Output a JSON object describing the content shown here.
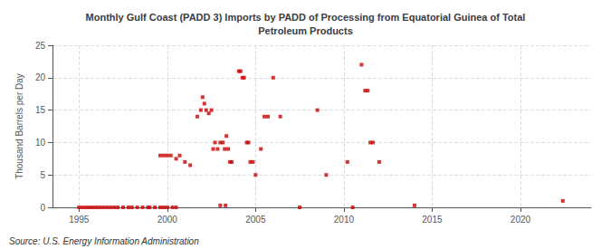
{
  "chart_data": {
    "type": "scatter",
    "title": "Monthly Gulf Coast (PADD 3) Imports by PADD of Processing from Equatorial Guinea of Total\nPetroleum Products",
    "ylabel": "Thousand Barrels per Day",
    "source": "Source: U.S. Energy Information Administration",
    "color": "#cc0000",
    "marker": "square",
    "grid": true,
    "xlim": [
      1993.5,
      2024
    ],
    "ylim": [
      0,
      25
    ],
    "xticks": [
      1995,
      2000,
      2005,
      2010,
      2015,
      2020
    ],
    "yticks": [
      0,
      5,
      10,
      15,
      20,
      25
    ],
    "x": [
      1995.0,
      1995.2,
      1995.4,
      1995.6,
      1995.8,
      1996.0,
      1996.2,
      1996.4,
      1996.6,
      1996.8,
      1997.0,
      1997.2,
      1997.5,
      1997.8,
      1998.0,
      1998.3,
      1998.6,
      1998.9,
      1999.0,
      1999.3,
      1999.6,
      1999.8,
      2000.0,
      2000.3,
      2000.5,
      1999.6,
      1999.8,
      2000.0,
      2000.2,
      2000.5,
      2000.7,
      2001.0,
      2001.3,
      2001.7,
      2001.9,
      2002.0,
      2002.1,
      2002.2,
      2002.35,
      2002.5,
      2002.6,
      2002.7,
      2002.85,
      2003.0,
      2003.15,
      2003.25,
      2003.35,
      2003.45,
      2003.55,
      2003.0,
      2003.3,
      2003.65,
      2004.05,
      2004.15,
      2004.25,
      2004.35,
      2004.5,
      2004.6,
      2004.7,
      2004.85,
      2005.0,
      2005.3,
      2005.5,
      2005.7,
      2006.0,
      2006.4,
      2007.5,
      2008.5,
      2009.0,
      2010.2,
      2010.5,
      2011.0,
      2011.2,
      2011.35,
      2011.5,
      2011.65,
      2012.0,
      2014.0,
      2022.4
    ],
    "values": [
      0,
      0,
      0,
      0,
      0,
      0,
      0,
      0,
      0,
      0,
      0,
      0,
      0,
      0,
      0,
      0,
      0,
      0,
      0,
      0,
      0,
      0,
      0,
      0,
      0,
      8,
      8,
      8,
      8,
      7.5,
      8,
      7,
      6.5,
      14,
      15,
      17,
      16,
      15,
      14.5,
      15,
      9,
      10,
      9,
      10,
      10,
      9,
      11,
      9,
      7,
      0.3,
      0.3,
      7,
      21,
      21,
      20,
      20,
      10,
      10,
      7,
      7,
      5,
      9,
      14,
      14,
      20,
      14,
      0,
      15,
      5,
      7,
      0,
      22,
      18,
      18,
      10,
      10,
      7,
      0.3,
      1
    ]
  }
}
